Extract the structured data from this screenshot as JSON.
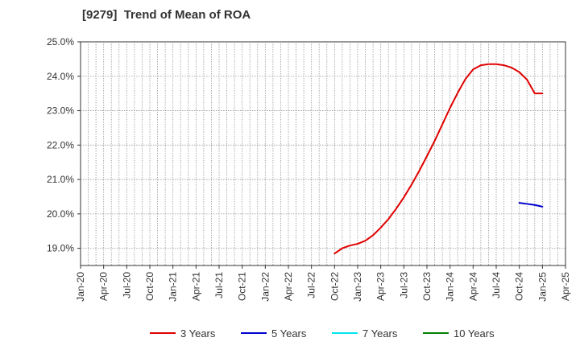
{
  "chart_data": {
    "type": "line",
    "title": "[9279]  Trend of Mean of ROA",
    "xlabel": "",
    "ylabel": "",
    "ylim": [
      18.5,
      25.0
    ],
    "yticks": [
      "19.0%",
      "20.0%",
      "21.0%",
      "22.0%",
      "23.0%",
      "24.0%",
      "25.0%"
    ],
    "ytick_values": [
      19.0,
      20.0,
      21.0,
      22.0,
      23.0,
      24.0,
      25.0
    ],
    "x_months_range": [
      "2020-01",
      "2025-04"
    ],
    "xticks": [
      "Jan-20",
      "Apr-20",
      "Jul-20",
      "Oct-20",
      "Jan-21",
      "Apr-21",
      "Jul-21",
      "Oct-21",
      "Jan-22",
      "Apr-22",
      "Jul-22",
      "Oct-22",
      "Jan-23",
      "Apr-23",
      "Jul-23",
      "Oct-23",
      "Jan-24",
      "Apr-24",
      "Jul-24",
      "Oct-24",
      "Jan-25",
      "Apr-25"
    ],
    "grid": true,
    "legend_position": "bottom",
    "series": [
      {
        "name": "3 Years",
        "color": "#e00000",
        "x": [
          "2022-10",
          "2022-11",
          "2022-12",
          "2023-01",
          "2023-02",
          "2023-03",
          "2023-04",
          "2023-05",
          "2023-06",
          "2023-07",
          "2023-08",
          "2023-09",
          "2023-10",
          "2023-11",
          "2023-12",
          "2024-01",
          "2024-02",
          "2024-03",
          "2024-04",
          "2024-05",
          "2024-06",
          "2024-07",
          "2024-08",
          "2024-09",
          "2024-10",
          "2024-11",
          "2024-12",
          "2025-01"
        ],
        "values": [
          18.85,
          19.0,
          19.08,
          19.13,
          19.22,
          19.38,
          19.6,
          19.85,
          20.15,
          20.48,
          20.85,
          21.25,
          21.68,
          22.12,
          22.6,
          23.08,
          23.52,
          23.92,
          24.2,
          24.32,
          24.35,
          24.35,
          24.32,
          24.25,
          24.12,
          23.9,
          23.5,
          23.5
        ]
      },
      {
        "name": "5 Years",
        "color": "#0000cc",
        "x": [
          "2024-10",
          "2024-11",
          "2024-12",
          "2025-01"
        ],
        "values": [
          20.32,
          20.29,
          20.26,
          20.21
        ]
      },
      {
        "name": "7 Years",
        "color": "#00e5ee",
        "x": [],
        "values": []
      },
      {
        "name": "10 Years",
        "color": "#008000",
        "x": [],
        "values": []
      }
    ]
  }
}
